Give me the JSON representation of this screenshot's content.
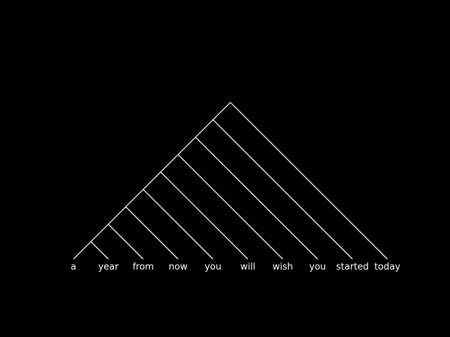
{
  "diagram": {
    "type": "left-branching-binary-tree",
    "leaves": [
      "a",
      "year",
      "from",
      "now",
      "you",
      "will",
      "wish",
      "you",
      "started",
      "today"
    ],
    "colors": {
      "background": "#000000",
      "lines": "#ffffff",
      "text": "#ffffff"
    }
  }
}
